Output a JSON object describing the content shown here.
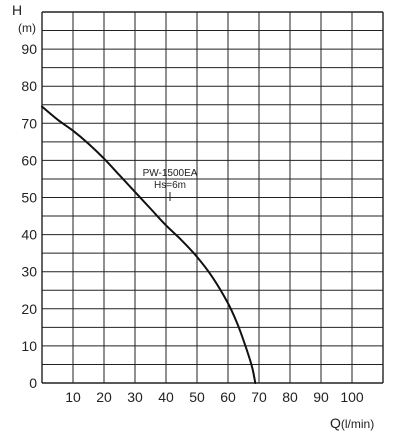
{
  "chart_data": {
    "type": "line",
    "title": "",
    "xlabel": "Q",
    "xlabel_unit": "(l/min)",
    "ylabel": "H",
    "ylabel_unit": "(m)",
    "xlim": [
      0,
      110
    ],
    "ylim": [
      0,
      100
    ],
    "x_ticks": [
      0,
      10,
      20,
      30,
      40,
      50,
      60,
      70,
      80,
      90,
      100
    ],
    "y_ticks": [
      0,
      10,
      20,
      30,
      40,
      50,
      60,
      70,
      80,
      90
    ],
    "grid": true,
    "legend": "none",
    "annotations": [
      {
        "text": "PW-1500EA"
      },
      {
        "text": "Hs=6m"
      }
    ],
    "series": [
      {
        "color": "#111111",
        "points": [
          [
            0,
            74.5
          ],
          [
            5,
            71
          ],
          [
            10,
            68
          ],
          [
            15,
            64.5
          ],
          [
            20,
            60.5
          ],
          [
            25,
            56
          ],
          [
            30,
            51.5
          ],
          [
            35,
            47
          ],
          [
            40,
            42.5
          ],
          [
            45,
            38.5
          ],
          [
            50,
            34
          ],
          [
            55,
            28.5
          ],
          [
            60,
            21.5
          ],
          [
            63,
            16
          ],
          [
            65,
            11.5
          ],
          [
            67,
            6.5
          ],
          [
            68,
            3.5
          ],
          [
            68.8,
            0
          ]
        ]
      }
    ]
  }
}
